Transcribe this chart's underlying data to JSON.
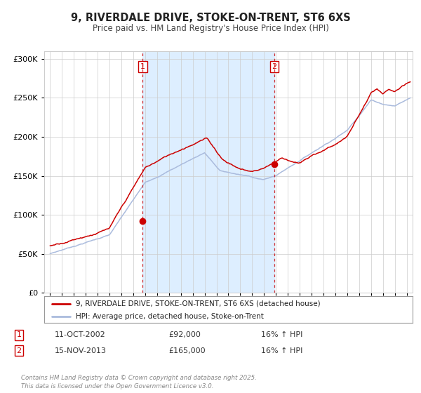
{
  "title": "9, RIVERDALE DRIVE, STOKE-ON-TRENT, ST6 6XS",
  "subtitle": "Price paid vs. HM Land Registry's House Price Index (HPI)",
  "legend_line1": "9, RIVERDALE DRIVE, STOKE-ON-TRENT, ST6 6XS (detached house)",
  "legend_line2": "HPI: Average price, detached house, Stoke-on-Trent",
  "transaction1_date": "11-OCT-2002",
  "transaction1_price": "£92,000",
  "transaction1_hpi": "16% ↑ HPI",
  "transaction1_year": 2002.78,
  "transaction1_value": 92000,
  "transaction2_date": "15-NOV-2013",
  "transaction2_price": "£165,000",
  "transaction2_hpi": "16% ↑ HPI",
  "transaction2_year": 2013.87,
  "transaction2_value": 165000,
  "background_color": "#ffffff",
  "shaded_region_color": "#ddeeff",
  "line_color_property": "#cc0000",
  "line_color_hpi": "#aabbdd",
  "vline_color": "#cc0000",
  "footer_text": "Contains HM Land Registry data © Crown copyright and database right 2025.\nThis data is licensed under the Open Government Licence v3.0.",
  "ylim": [
    0,
    310000
  ],
  "xlim_start": 1994.5,
  "xlim_end": 2025.5
}
